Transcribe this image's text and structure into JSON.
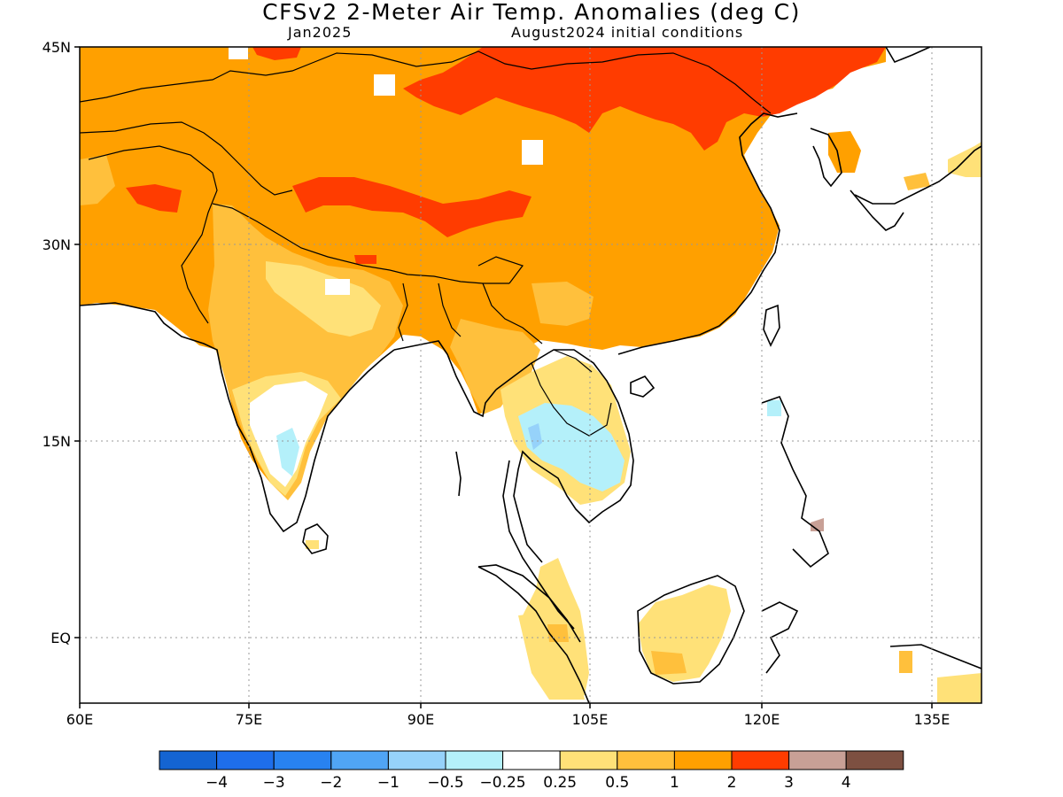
{
  "title": "CFSv2 2-Meter Air Temp. Anomalies (deg C)",
  "subtitle_left": "Jan2025",
  "subtitle_right": "August2024 initial conditions",
  "map": {
    "region": "Asia (South, East, Southeast)",
    "lon_range": [
      60,
      140
    ],
    "lat_range": [
      -6,
      45
    ],
    "lon_ticks": [
      "60E",
      "75E",
      "90E",
      "105E",
      "120E",
      "135E"
    ],
    "lat_ticks": [
      "45N",
      "30N",
      "15N",
      "EQ"
    ],
    "grid": "dotted",
    "coastlines": true,
    "country_borders": true
  },
  "colorbar": {
    "colors": [
      "#1464d2",
      "#1e6eeb",
      "#2882f0",
      "#50a5f5",
      "#96d2fa",
      "#b4f0fa",
      "#ffffff",
      "#ffe178",
      "#ffc03c",
      "#ffa000",
      "#ff3c00",
      "#c8a096",
      "#7d5041"
    ],
    "labels": [
      "-4",
      "-3",
      "-2",
      "-1",
      "-0.5",
      "-0.25",
      "0.25",
      "0.5",
      "1",
      "2",
      "3",
      "4"
    ]
  }
}
